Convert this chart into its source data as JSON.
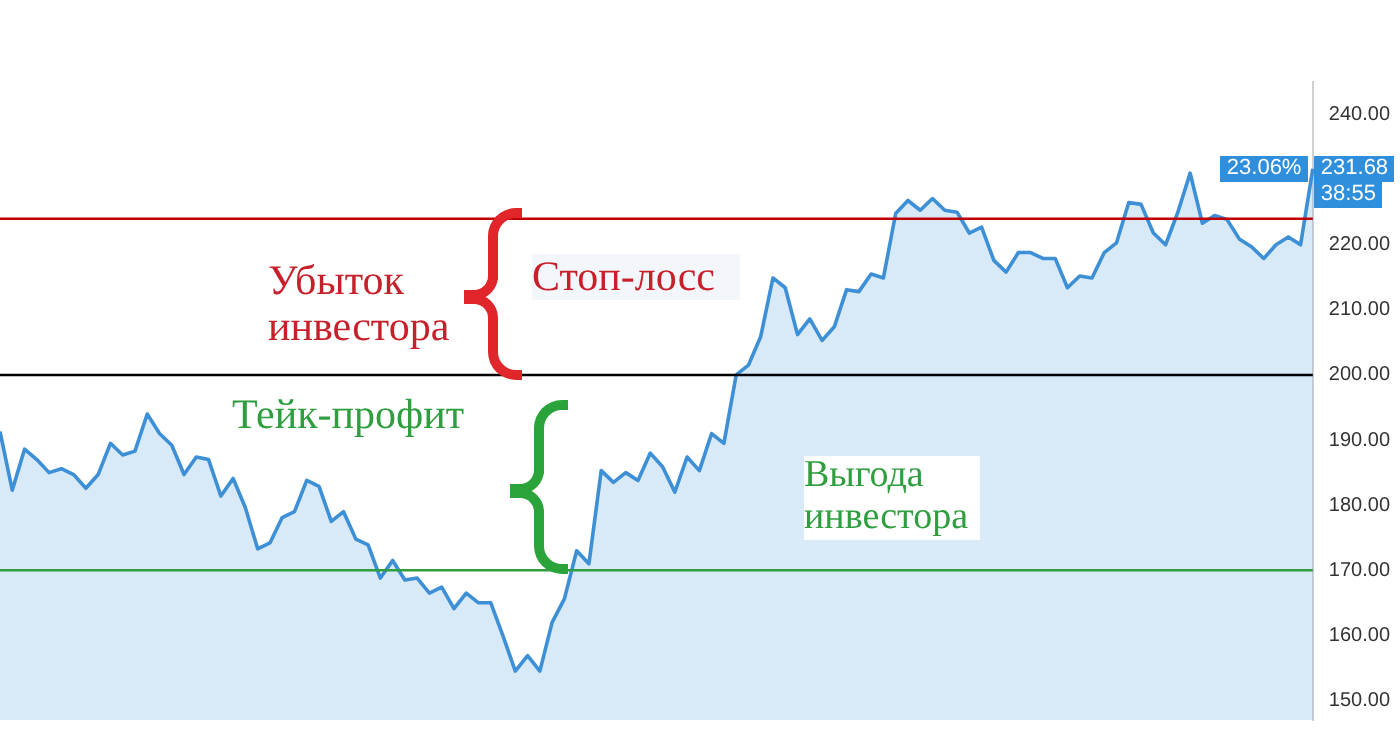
{
  "chart_data": {
    "type": "area",
    "categories": [
      null,
      null,
      null,
      null,
      null,
      null,
      null,
      null,
      null,
      null,
      null,
      null,
      null,
      null,
      null,
      null,
      null,
      null,
      null,
      null,
      null,
      null,
      null,
      null,
      null,
      null,
      null,
      null,
      null,
      null,
      null,
      null,
      null,
      null,
      null,
      null,
      null,
      null,
      null,
      null,
      null,
      null,
      null,
      null,
      null,
      null,
      null,
      null,
      null,
      null,
      null,
      null,
      null,
      null,
      null,
      null,
      null,
      null,
      null,
      null,
      null,
      null,
      null,
      null,
      null,
      null,
      null,
      null,
      null,
      null,
      null,
      null,
      null,
      null,
      null,
      null,
      null,
      null,
      null,
      null,
      null,
      null,
      null,
      null,
      null,
      null,
      null,
      null,
      null,
      null,
      null,
      null,
      null,
      null,
      null,
      null,
      null,
      null,
      null,
      null,
      null,
      null,
      null,
      null,
      null,
      null,
      null,
      null
    ],
    "series": [
      {
        "color": "#3d8fd6",
        "values": [
          191.3,
          182.3,
          188.6,
          187,
          185,
          185.6,
          184.7,
          182.6,
          184.7,
          189.5,
          187.7,
          188.3,
          194,
          191,
          189.2,
          184.7,
          187.4,
          187,
          181.4,
          184.1,
          179.6,
          173.3,
          174.2,
          178.1,
          179,
          183.8,
          182.9,
          177.5,
          179,
          174.8,
          173.9,
          168.8,
          171.5,
          168.5,
          168.8,
          166.5,
          167.4,
          164.1,
          166.5,
          165,
          165,
          159.9,
          154.5,
          156.9,
          154.5,
          162,
          165.6,
          173,
          171,
          185.3,
          183.5,
          185,
          183.8,
          188,
          185.9,
          182,
          187.4,
          185.3,
          191,
          189.5,
          200,
          201.5,
          205.9,
          214.9,
          213.4,
          206.2,
          208.6,
          205.3,
          207.4,
          213.1,
          212.8,
          215.5,
          214.9,
          224.8,
          226.8,
          225.3,
          227.1,
          225.3,
          225,
          221.8,
          222.7,
          217.6,
          215.8,
          218.8,
          218.8,
          217.9,
          217.9,
          213.4,
          215.2,
          214.9,
          218.8,
          220.3,
          226.5,
          226.2,
          221.8,
          220,
          225,
          231,
          223.3,
          224.5,
          223.9,
          220.9,
          219.7,
          217.9,
          220,
          221.2,
          220,
          231.68
        ]
      }
    ],
    "ylim": [
      147,
      245
    ],
    "yticks": [
      {
        "value": 150,
        "label": "150.00"
      },
      {
        "value": 160,
        "label": "160.00"
      },
      {
        "value": 170,
        "label": "170.00"
      },
      {
        "value": 180,
        "label": "180.00"
      },
      {
        "value": 190,
        "label": "190.00"
      },
      {
        "value": 200,
        "label": "200.00"
      },
      {
        "value": 210,
        "label": "210.00"
      },
      {
        "value": 220,
        "label": "220.00"
      },
      {
        "value": 240,
        "label": "240.00"
      }
    ],
    "tick_labels": "y",
    "grid": false,
    "legend": false,
    "marker": "none",
    "ref_lines": [
      {
        "axis": "y",
        "value": 224,
        "color": "#c00000"
      },
      {
        "axis": "y",
        "value": 200,
        "color": "#000000"
      },
      {
        "axis": "y",
        "value": 170,
        "color": "#2e9e3e"
      }
    ],
    "annotations": [
      "Убыток инвестора",
      "Стоп-лосс",
      "Тейк-профит",
      "Выгода инвестора",
      {
        "text": "23.06%",
        "y": 231.68
      },
      {
        "text": "231.68",
        "y": 231.68
      },
      "38:55"
    ]
  }
}
